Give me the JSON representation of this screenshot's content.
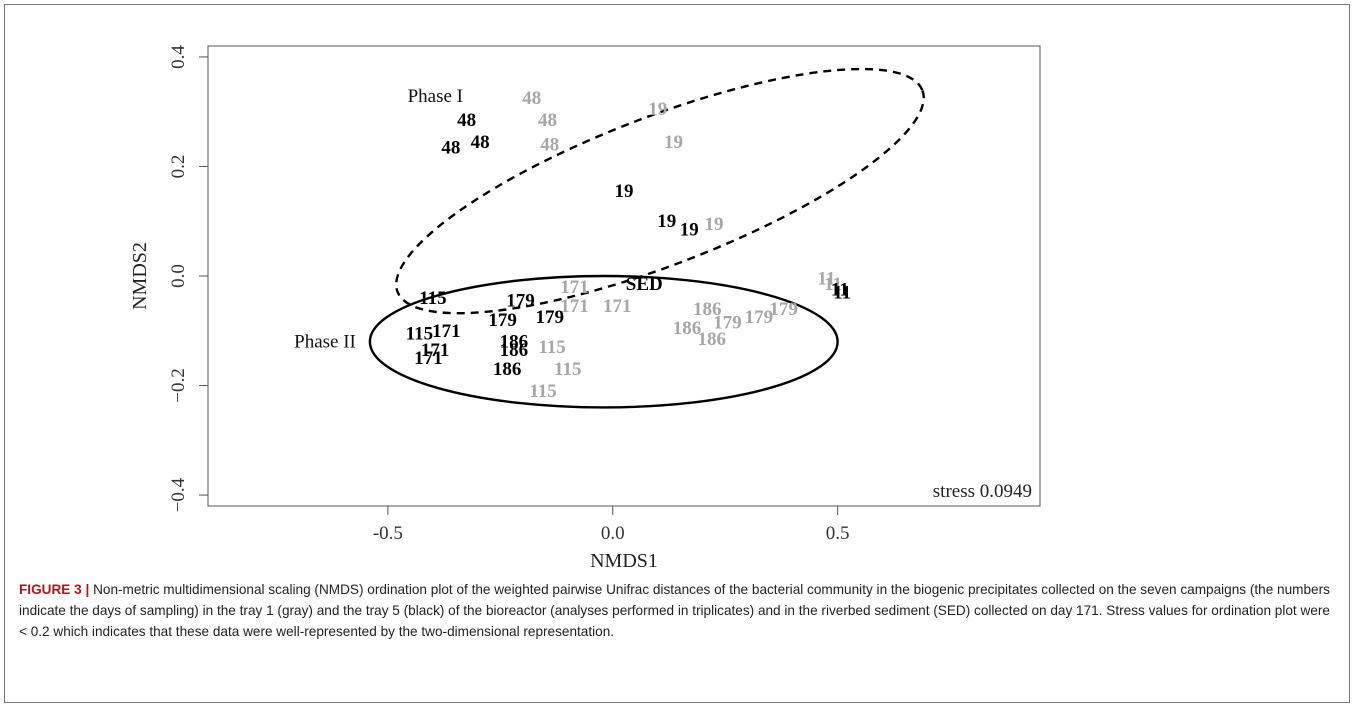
{
  "chart_data": {
    "type": "scatter",
    "xlabel": "NMDS1",
    "ylabel": "NMDS2",
    "xlim": [
      -0.9,
      0.95
    ],
    "ylim": [
      -0.42,
      0.42
    ],
    "xticks": [
      -0.5,
      0.0,
      0.5
    ],
    "yticks": [
      -0.4,
      -0.2,
      0.0,
      0.2,
      0.4
    ],
    "grid": false,
    "stress_label": "stress 0.0949",
    "series": [
      {
        "name": "tray 1",
        "color": "#a6a6a6",
        "points": [
          {
            "label": "48",
            "x": -0.18,
            "y": 0.325
          },
          {
            "label": "48",
            "x": -0.145,
            "y": 0.285
          },
          {
            "label": "48",
            "x": -0.14,
            "y": 0.24
          },
          {
            "label": "19",
            "x": 0.1,
            "y": 0.305
          },
          {
            "label": "19",
            "x": 0.135,
            "y": 0.245
          },
          {
            "label": "19",
            "x": 0.225,
            "y": 0.095
          },
          {
            "label": "171",
            "x": -0.085,
            "y": -0.02
          },
          {
            "label": "171",
            "x": -0.085,
            "y": -0.055
          },
          {
            "label": "171",
            "x": 0.01,
            "y": -0.055
          },
          {
            "label": "115",
            "x": -0.135,
            "y": -0.13
          },
          {
            "label": "115",
            "x": -0.1,
            "y": -0.17
          },
          {
            "label": "115",
            "x": -0.155,
            "y": -0.21
          },
          {
            "label": "186",
            "x": 0.21,
            "y": -0.06
          },
          {
            "label": "186",
            "x": 0.165,
            "y": -0.095
          },
          {
            "label": "186",
            "x": 0.22,
            "y": -0.115
          },
          {
            "label": "179",
            "x": 0.255,
            "y": -0.085
          },
          {
            "label": "179",
            "x": 0.325,
            "y": -0.075
          },
          {
            "label": "179",
            "x": 0.38,
            "y": -0.06
          },
          {
            "label": "11",
            "x": 0.475,
            "y": -0.005
          },
          {
            "label": "11",
            "x": 0.49,
            "y": -0.015
          }
        ]
      },
      {
        "name": "tray 5",
        "color": "#000000",
        "points": [
          {
            "label": "48",
            "x": -0.325,
            "y": 0.285
          },
          {
            "label": "48",
            "x": -0.295,
            "y": 0.245
          },
          {
            "label": "48",
            "x": -0.36,
            "y": 0.235
          },
          {
            "label": "19",
            "x": 0.025,
            "y": 0.155
          },
          {
            "label": "19",
            "x": 0.12,
            "y": 0.1
          },
          {
            "label": "19",
            "x": 0.17,
            "y": 0.085
          },
          {
            "label": "SED",
            "x": 0.07,
            "y": -0.015
          },
          {
            "label": "115",
            "x": -0.4,
            "y": -0.04
          },
          {
            "label": "115",
            "x": -0.43,
            "y": -0.105
          },
          {
            "label": "171",
            "x": -0.37,
            "y": -0.1
          },
          {
            "label": "171",
            "x": -0.395,
            "y": -0.135
          },
          {
            "label": "171",
            "x": -0.41,
            "y": -0.15
          },
          {
            "label": "179",
            "x": -0.205,
            "y": -0.045
          },
          {
            "label": "179",
            "x": -0.245,
            "y": -0.08
          },
          {
            "label": "179",
            "x": -0.14,
            "y": -0.075
          },
          {
            "label": "186",
            "x": -0.22,
            "y": -0.12
          },
          {
            "label": "186",
            "x": -0.22,
            "y": -0.135
          },
          {
            "label": "186",
            "x": -0.235,
            "y": -0.17
          },
          {
            "label": "11",
            "x": 0.505,
            "y": -0.025
          },
          {
            "label": "11",
            "x": 0.51,
            "y": -0.03
          }
        ]
      }
    ],
    "ellipses": [
      {
        "label": "Phase I",
        "style": "dashed",
        "cx": 0.105,
        "cy": 0.155,
        "rx": 0.625,
        "ry": 0.135,
        "angle_deg": -21
      },
      {
        "label": "Phase II",
        "style": "solid",
        "cx": -0.02,
        "cy": -0.12,
        "rx": 0.52,
        "ry": 0.12,
        "angle_deg": 0
      }
    ],
    "phase_labels": [
      "Phase I",
      "Phase II"
    ]
  },
  "caption": {
    "label": "FIGURE 3 |",
    "text": "Non-metric multidimensional scaling (NMDS) ordination plot of the weighted pairwise Unifrac distances of the bacterial community in the biogenic precipitates collected on the seven campaigns (the numbers indicate the days of sampling) in the tray 1 (gray) and the tray 5 (black) of the bioreactor (analyses performed in triplicates) and in the riverbed sediment (SED) collected on day 171. Stress values for ordination plot were < 0.2 which indicates that these data were well-represented by the two-dimensional representation."
  }
}
